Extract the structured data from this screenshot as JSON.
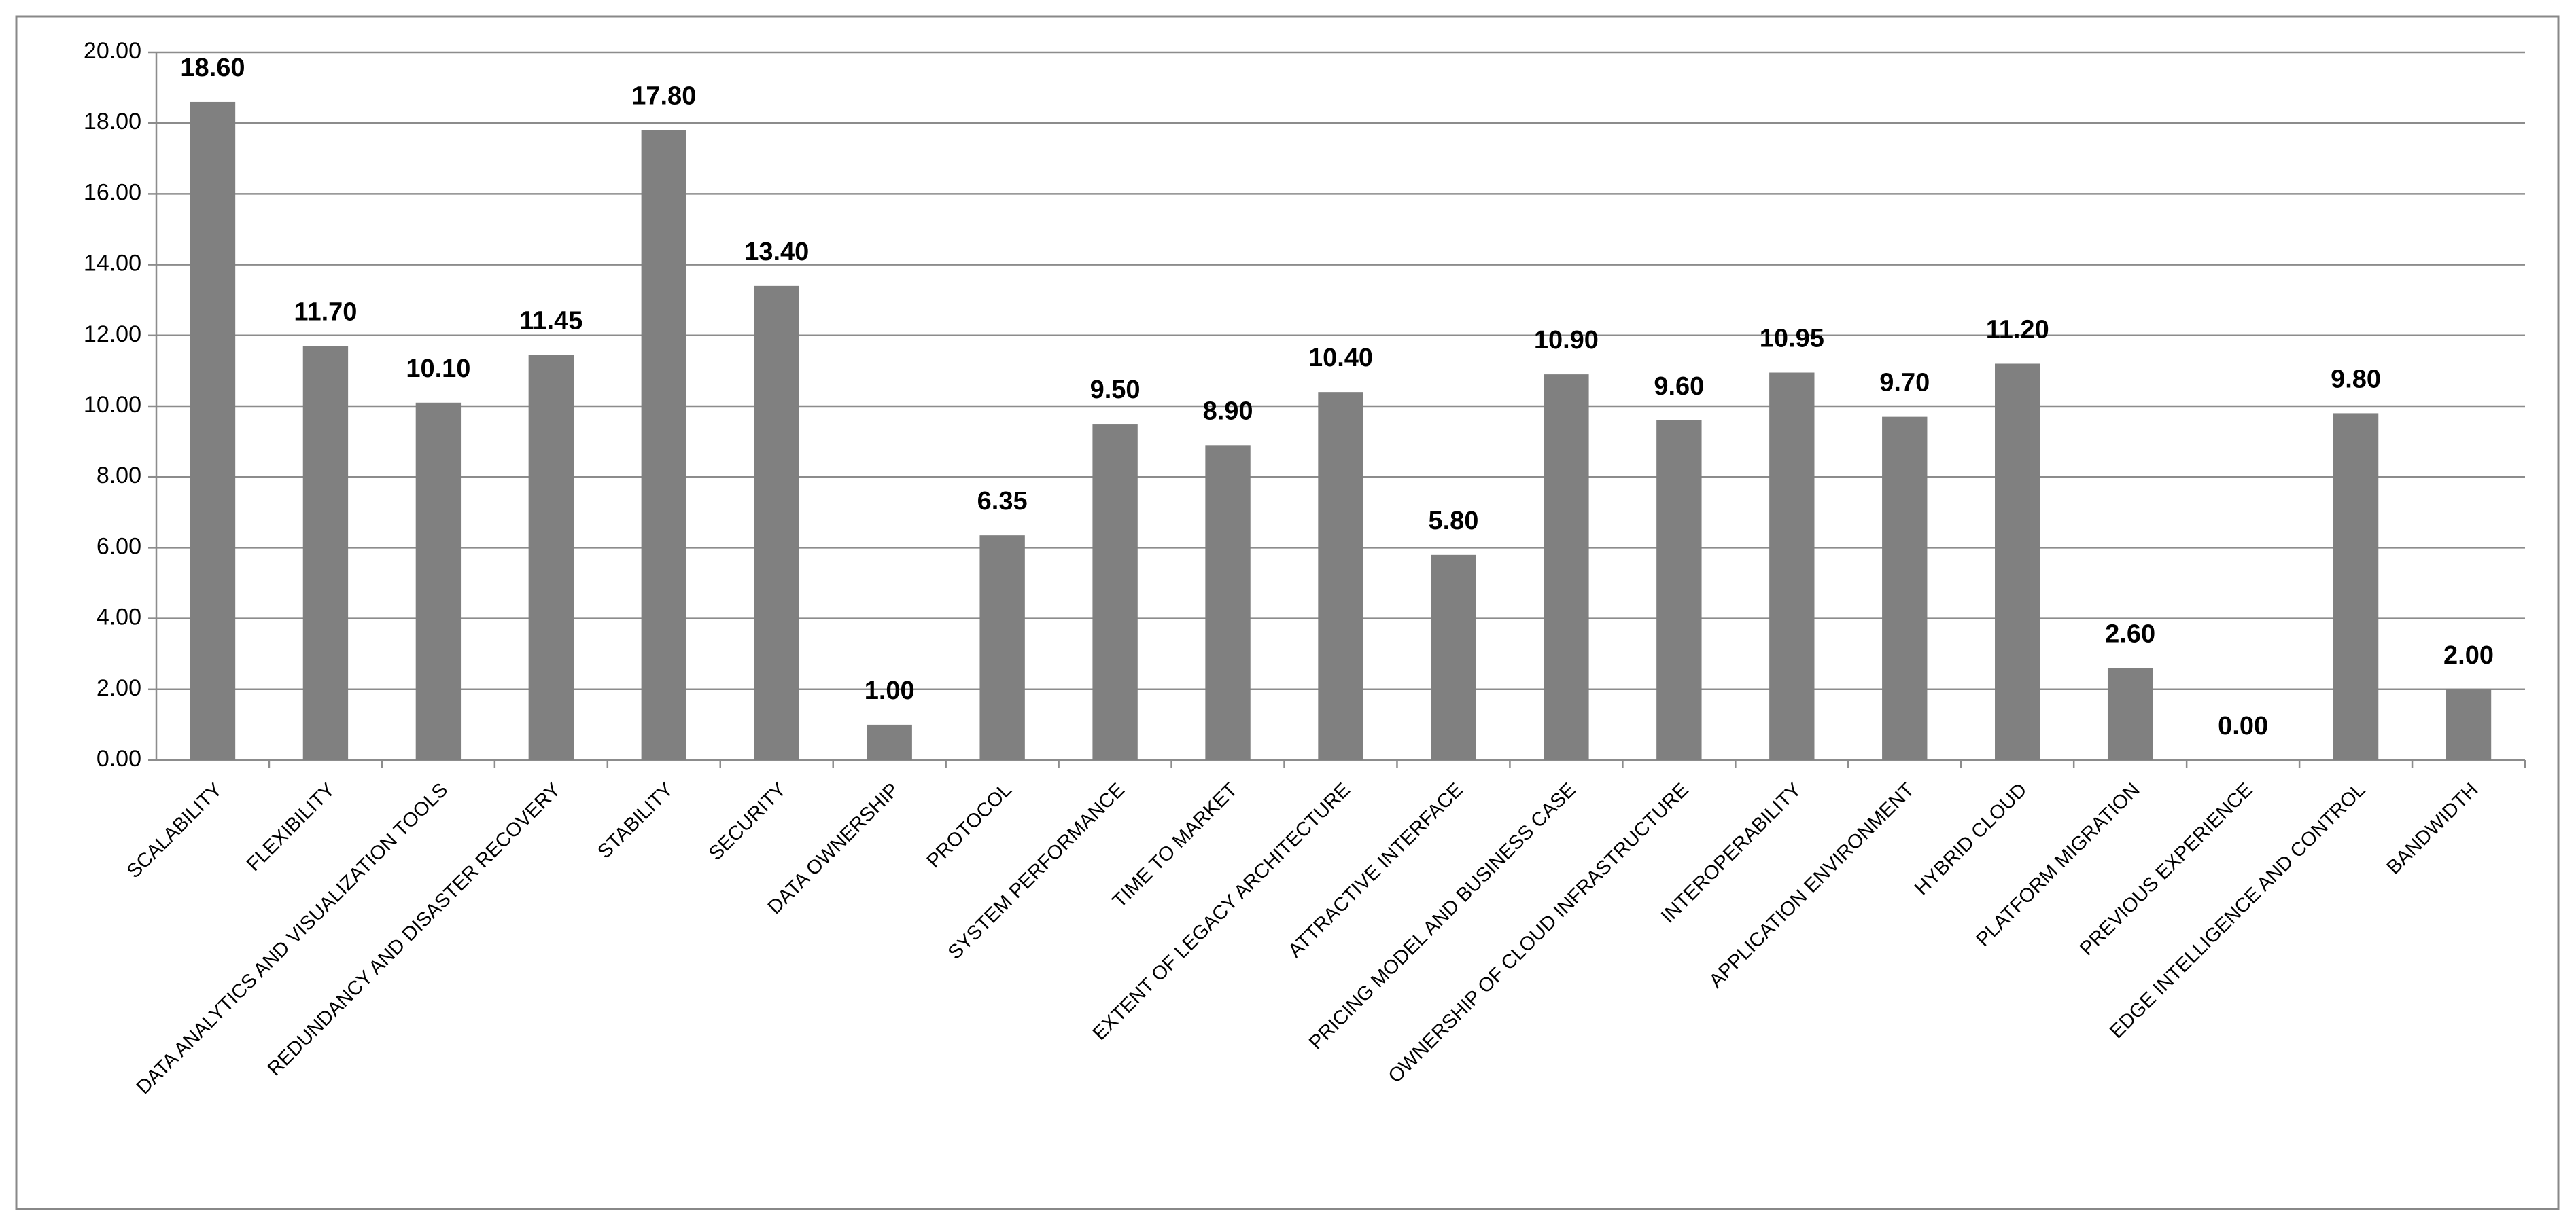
{
  "chart_data": {
    "type": "bar",
    "categories": [
      "SCALABILITY",
      "FLEXIBILITY",
      "DATA ANALYTICS AND VISUALIZATION TOOLS",
      "REDUNDANCY AND DISASTER RECOVERY",
      "STABILITY",
      "SECURITY",
      "DATA OWNERSHIP",
      "PROTOCOL",
      "SYSTEM PERFORMANCE",
      "TIME TO MARKET",
      "EXTENT OF LEGACY ARCHITECTURE",
      "ATTRACTIVE INTERFACE",
      "PRICING MODEL AND BUSINESS CASE",
      "OWNERSHIP OF CLOUD INFRASTRUCTURE",
      "INTEROPERABILITY",
      "APPLICATION ENVIRONMENT",
      "HYBRID CLOUD",
      "PLATFORM MIGRATION",
      "PREVIOUS EXPERIENCE",
      "EDGE INTELLIGENCE AND CONTROL",
      "BANDWIDTH"
    ],
    "values": [
      18.6,
      11.7,
      10.1,
      11.45,
      17.8,
      13.4,
      1,
      6.35,
      9.5,
      8.9,
      10.4,
      5.8,
      10.9,
      9.6,
      10.95,
      9.7,
      11.2,
      2.6,
      0,
      9.8,
      2
    ],
    "value_labels": [
      "18.60",
      "11.70",
      "10.10",
      "11.45",
      "17.80",
      "13.40",
      "1.00",
      "6.35",
      "9.50",
      "8.90",
      "10.40",
      "5.80",
      "10.90",
      "9.60",
      "10.95",
      "9.70",
      "11.20",
      "2.60",
      "0.00",
      "9.80",
      "2.00"
    ],
    "color": "#808080",
    "ylim": [
      0,
      20
    ],
    "yticks": [
      {
        "value": 0,
        "label": "0.00"
      },
      {
        "value": 2,
        "label": "2.00"
      },
      {
        "value": 4,
        "label": "4.00"
      },
      {
        "value": 6,
        "label": "6.00"
      },
      {
        "value": 8,
        "label": "8.00"
      },
      {
        "value": 10,
        "label": "10.00"
      },
      {
        "value": 12,
        "label": "12.00"
      },
      {
        "value": 14,
        "label": "14.00"
      },
      {
        "value": 16,
        "label": "16.00"
      },
      {
        "value": 18,
        "label": "18.00"
      },
      {
        "value": 20,
        "label": "20.00"
      }
    ],
    "grid": true
  }
}
